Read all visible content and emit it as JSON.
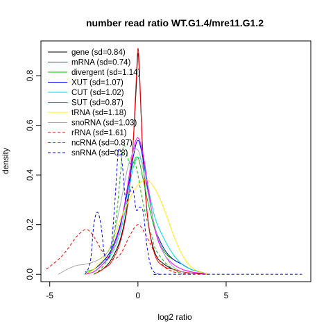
{
  "chart_data": {
    "type": "line",
    "title": "number read ratio WT.G1.4/mre11.G1.2",
    "xlabel": "log2 ratio",
    "ylabel": "density",
    "xlim": [
      -5.5,
      9.8
    ],
    "ylim": [
      -0.03,
      0.94
    ],
    "xticks": [
      -5,
      0,
      5
    ],
    "yticks": [
      0.0,
      0.2,
      0.4,
      0.6,
      0.8
    ],
    "grid": false,
    "legend_position": "top-left",
    "series": [
      {
        "name": "gene (sd=0.84)",
        "color": "#000000",
        "dash": "solid",
        "x": [
          -2.5,
          -2,
          -1.5,
          -1,
          -0.6,
          -0.3,
          -0.1,
          0,
          0.1,
          0.3,
          0.6,
          1,
          1.5,
          2,
          2.5,
          3,
          4
        ],
        "y": [
          0,
          0.02,
          0.06,
          0.14,
          0.28,
          0.5,
          0.75,
          0.89,
          0.78,
          0.45,
          0.2,
          0.08,
          0.04,
          0.02,
          0.01,
          0.005,
          0
        ]
      },
      {
        "name": "mRNA (sd=0.74)",
        "color": "#ff0000",
        "dash": "solid",
        "x": [
          -2.5,
          -2,
          -1.5,
          -1,
          -0.6,
          -0.3,
          -0.1,
          0,
          0.1,
          0.3,
          0.6,
          1,
          1.5,
          2,
          2.5,
          3,
          4
        ],
        "y": [
          0,
          0.02,
          0.05,
          0.13,
          0.27,
          0.5,
          0.78,
          0.91,
          0.8,
          0.46,
          0.2,
          0.07,
          0.03,
          0.02,
          0.01,
          0.005,
          0
        ]
      },
      {
        "name": "divergent (sd=1.14)",
        "color": "#00bb00",
        "dash": "solid",
        "x": [
          -3,
          -2.5,
          -2,
          -1.5,
          -1,
          -0.6,
          -0.3,
          0,
          0.3,
          0.6,
          1,
          1.5,
          2,
          2.5,
          3,
          3.5,
          4
        ],
        "y": [
          0.01,
          0.02,
          0.05,
          0.1,
          0.2,
          0.34,
          0.44,
          0.47,
          0.38,
          0.28,
          0.17,
          0.09,
          0.06,
          0.04,
          0.02,
          0.01,
          0
        ]
      },
      {
        "name": "XUT (sd=1.07)",
        "color": "#0000ff",
        "dash": "solid",
        "x": [
          -3,
          -2.5,
          -2,
          -1.5,
          -1,
          -0.6,
          -0.3,
          0,
          0.3,
          0.6,
          1,
          1.5,
          2,
          2.5,
          3,
          3.5,
          4
        ],
        "y": [
          0,
          0.02,
          0.05,
          0.1,
          0.2,
          0.33,
          0.46,
          0.54,
          0.46,
          0.32,
          0.18,
          0.1,
          0.06,
          0.04,
          0.02,
          0.01,
          0
        ]
      },
      {
        "name": "CUT (sd=1.02)",
        "color": "#00dddd",
        "dash": "solid",
        "x": [
          -3,
          -2.5,
          -2,
          -1.5,
          -1,
          -0.6,
          -0.3,
          0,
          0.3,
          0.6,
          1,
          1.5,
          2,
          2.5,
          3,
          3.5,
          4
        ],
        "y": [
          0,
          0.01,
          0.04,
          0.08,
          0.17,
          0.3,
          0.42,
          0.47,
          0.44,
          0.34,
          0.22,
          0.14,
          0.08,
          0.04,
          0.02,
          0.01,
          0
        ]
      },
      {
        "name": "SUT (sd=0.87)",
        "color": "#ff00ff",
        "dash": "solid",
        "x": [
          -3,
          -2.5,
          -2,
          -1.5,
          -1,
          -0.6,
          -0.3,
          0,
          0.3,
          0.6,
          1,
          1.5,
          2,
          2.5,
          3,
          3.5,
          4
        ],
        "y": [
          0,
          0.01,
          0.04,
          0.09,
          0.19,
          0.35,
          0.49,
          0.55,
          0.48,
          0.34,
          0.17,
          0.08,
          0.04,
          0.02,
          0.01,
          0.005,
          0
        ]
      },
      {
        "name": "tRNA (sd=1.18)",
        "color": "#ffee00",
        "dash": "solid",
        "x": [
          -3,
          -2.5,
          -2,
          -1.5,
          -1,
          -0.5,
          0,
          0.5,
          1,
          1.5,
          2,
          2.5,
          3,
          3.5,
          4
        ],
        "y": [
          0,
          0.02,
          0.06,
          0.12,
          0.22,
          0.3,
          0.36,
          0.38,
          0.34,
          0.26,
          0.16,
          0.08,
          0.03,
          0.01,
          0
        ]
      },
      {
        "name": "snoRNA (sd=1.03)",
        "color": "#aaaaaa",
        "dash": "solid",
        "x": [
          -4.5,
          -4,
          -3.5,
          -3,
          -2.5,
          -2,
          -1.5,
          -1,
          -0.5,
          0,
          0.5,
          1,
          1.5,
          2,
          2.5,
          3
        ],
        "y": [
          0,
          0.02,
          0.035,
          0.04,
          0.05,
          0.07,
          0.12,
          0.28,
          0.45,
          0.5,
          0.35,
          0.18,
          0.08,
          0.03,
          0.01,
          0
        ]
      },
      {
        "name": "rRNA (sd=1.61)",
        "color": "#ff0000",
        "dash": "dashed",
        "x": [
          -5.2,
          -4.5,
          -4,
          -3.5,
          -3,
          -2.7,
          -2.4,
          -2,
          -1.5,
          -1,
          -0.5,
          0,
          0.5,
          1,
          1.5,
          2,
          2.5,
          3
        ],
        "y": [
          0.02,
          0.06,
          0.1,
          0.15,
          0.18,
          0.17,
          0.14,
          0.09,
          0.06,
          0.08,
          0.15,
          0.2,
          0.15,
          0.08,
          0.03,
          0.01,
          0.005,
          0
        ]
      },
      {
        "name": "ncRNA (sd=0.87)",
        "color": "#00bb00",
        "dash": "dashed",
        "x": [
          -2.5,
          -2,
          -1.5,
          -1.2,
          -1,
          -0.8,
          -0.5,
          -0.2,
          0,
          0.2,
          0.5,
          0.8,
          1,
          1.5,
          2,
          2.5
        ],
        "y": [
          0,
          0.03,
          0.1,
          0.25,
          0.4,
          0.52,
          0.45,
          0.45,
          0.4,
          0.32,
          0.22,
          0.15,
          0.1,
          0.05,
          0.02,
          0
        ]
      },
      {
        "name": "snRNA (sd=0.8)",
        "color": "#0000ff",
        "dash": "dashed",
        "x": [
          -3,
          -2.7,
          -2.5,
          -2.3,
          -2.1,
          -1.9,
          -1.7,
          -1.5,
          -1.3,
          -1.1,
          -0.9,
          -0.7,
          -0.5,
          -0.3,
          -0.1,
          0.1,
          0.3,
          0.5,
          0.7,
          0.9,
          1.2,
          1.5,
          9.3
        ],
        "y": [
          0,
          0.05,
          0.2,
          0.25,
          0.2,
          0.08,
          0.06,
          0.12,
          0.3,
          0.5,
          0.45,
          0.3,
          0.32,
          0.35,
          0.26,
          0.27,
          0.25,
          0.12,
          0.04,
          0.01,
          0,
          0,
          0
        ]
      }
    ]
  }
}
